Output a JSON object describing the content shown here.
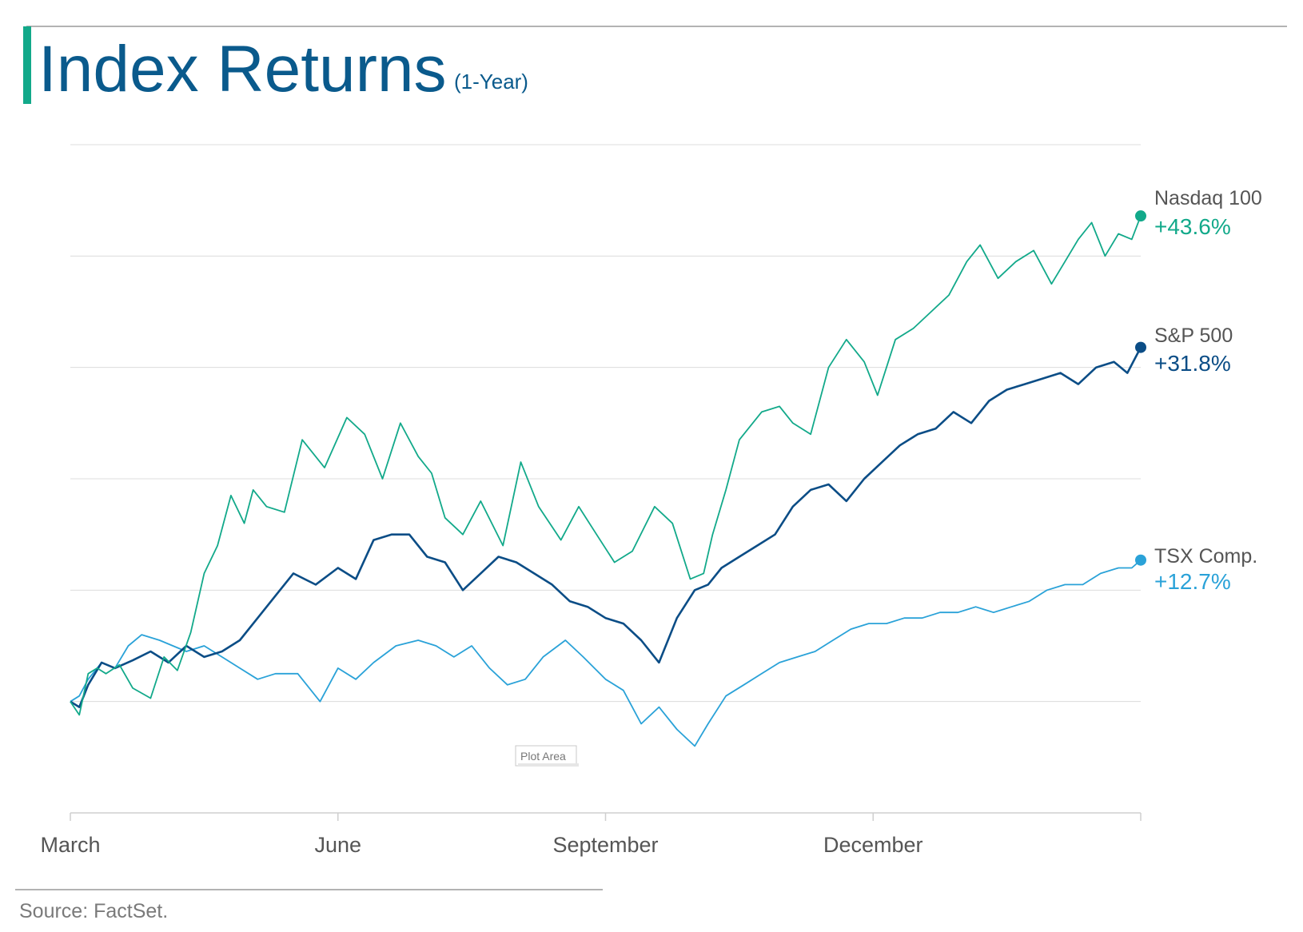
{
  "colors": {
    "accent_bar": "#12a98a",
    "title": "#0a5a8c",
    "gridline": "#dcdcdc",
    "axis": "#cfcfcf",
    "nasdaq": "#12a98a",
    "sp500": "#0b4d86",
    "tsx": "#2aa2d8"
  },
  "title": "Index Returns",
  "subtitle": "(1-Year)",
  "source": "Source: FactSet.",
  "tooltip": "Plot Area",
  "chart_data": {
    "type": "line",
    "title": "Index Returns",
    "subtitle": "(1-Year)",
    "xlabel": "",
    "ylabel": "",
    "x_ticks": [
      "March",
      "June",
      "September",
      "December"
    ],
    "x_tick_positions": [
      0,
      3,
      6,
      9
    ],
    "x_range": [
      0,
      12
    ],
    "ylim": [
      -10,
      50
    ],
    "grid": "horizontal",
    "y_tick_labels_shown": false,
    "legend": "direct labels at line ends (right)",
    "series": [
      {
        "name": "Nasdaq 100",
        "label": "+43.6%",
        "color": "#12a98a",
        "x": [
          0,
          0.1,
          0.2,
          0.3,
          0.4,
          0.55,
          0.7,
          0.9,
          1.05,
          1.2,
          1.35,
          1.5,
          1.65,
          1.8,
          1.95,
          2.05,
          2.2,
          2.4,
          2.6,
          2.85,
          3.1,
          3.3,
          3.5,
          3.7,
          3.9,
          4.05,
          4.2,
          4.4,
          4.6,
          4.85,
          5.05,
          5.25,
          5.5,
          5.7,
          5.9,
          6.1,
          6.3,
          6.55,
          6.75,
          6.95,
          7.1,
          7.2,
          7.35,
          7.5,
          7.75,
          7.95,
          8.1,
          8.3,
          8.5,
          8.7,
          8.9,
          9.05,
          9.25,
          9.45,
          9.65,
          9.85,
          10.05,
          10.2,
          10.4,
          10.6,
          10.8,
          11.0,
          11.15,
          11.3,
          11.45,
          11.6,
          11.75,
          11.9,
          12.0
        ],
        "y": [
          0,
          -1.2,
          2.5,
          3.0,
          2.5,
          3.3,
          1.2,
          0.3,
          4.0,
          2.8,
          6.2,
          11.5,
          14.0,
          18.5,
          16.0,
          19.0,
          17.5,
          17.0,
          23.5,
          21.0,
          25.5,
          24.0,
          20.0,
          25.0,
          22.0,
          20.5,
          16.5,
          15.0,
          18.0,
          14.0,
          21.5,
          17.5,
          14.5,
          17.5,
          15.0,
          12.5,
          13.5,
          17.5,
          16.0,
          11.0,
          11.5,
          15.0,
          19.0,
          23.5,
          26.0,
          26.5,
          25.0,
          24.0,
          30.0,
          32.5,
          30.5,
          27.5,
          32.5,
          33.5,
          35.0,
          36.5,
          39.5,
          41.0,
          38.0,
          39.5,
          40.5,
          37.5,
          39.5,
          41.5,
          43.0,
          40.0,
          42.0,
          41.5,
          43.6
        ]
      },
      {
        "name": "S&P 500",
        "label": "+31.8%",
        "color": "#0b4d86",
        "x": [
          0,
          0.1,
          0.2,
          0.35,
          0.5,
          0.7,
          0.9,
          1.1,
          1.3,
          1.5,
          1.7,
          1.9,
          2.1,
          2.3,
          2.5,
          2.75,
          3.0,
          3.2,
          3.4,
          3.6,
          3.8,
          4.0,
          4.2,
          4.4,
          4.6,
          4.8,
          5.0,
          5.2,
          5.4,
          5.6,
          5.8,
          6.0,
          6.2,
          6.4,
          6.6,
          6.8,
          7.0,
          7.15,
          7.3,
          7.5,
          7.7,
          7.9,
          8.1,
          8.3,
          8.5,
          8.7,
          8.9,
          9.1,
          9.3,
          9.5,
          9.7,
          9.9,
          10.1,
          10.3,
          10.5,
          10.7,
          10.9,
          11.1,
          11.3,
          11.5,
          11.7,
          11.85,
          12.0
        ],
        "y": [
          0,
          -0.5,
          1.5,
          3.5,
          3.0,
          3.7,
          4.5,
          3.5,
          5.0,
          4.0,
          4.5,
          5.5,
          7.5,
          9.5,
          11.5,
          10.5,
          12.0,
          11.0,
          14.5,
          15.0,
          15.0,
          13.0,
          12.5,
          10.0,
          11.5,
          13.0,
          12.5,
          11.5,
          10.5,
          9.0,
          8.5,
          7.5,
          7.0,
          5.5,
          3.5,
          7.5,
          10.0,
          10.5,
          12.0,
          13.0,
          14.0,
          15.0,
          17.5,
          19.0,
          19.5,
          18.0,
          20.0,
          21.5,
          23.0,
          24.0,
          24.5,
          26.0,
          25.0,
          27.0,
          28.0,
          28.5,
          29.0,
          29.5,
          28.5,
          30.0,
          30.5,
          29.5,
          31.8
        ]
      },
      {
        "name": "TSX Comp.",
        "label": "+12.7%",
        "color": "#2aa2d8",
        "x": [
          0,
          0.1,
          0.2,
          0.35,
          0.5,
          0.65,
          0.8,
          1.0,
          1.15,
          1.3,
          1.5,
          1.7,
          1.9,
          2.1,
          2.3,
          2.55,
          2.8,
          3.0,
          3.2,
          3.4,
          3.65,
          3.9,
          4.1,
          4.3,
          4.5,
          4.7,
          4.9,
          5.1,
          5.3,
          5.55,
          5.75,
          6.0,
          6.2,
          6.4,
          6.6,
          6.8,
          7.0,
          7.15,
          7.35,
          7.55,
          7.75,
          7.95,
          8.15,
          8.35,
          8.55,
          8.75,
          8.95,
          9.15,
          9.35,
          9.55,
          9.75,
          9.95,
          10.15,
          10.35,
          10.55,
          10.75,
          10.95,
          11.15,
          11.35,
          11.55,
          11.75,
          11.9,
          12.0
        ],
        "y": [
          0,
          0.5,
          2.0,
          3.5,
          3.0,
          5.0,
          6.0,
          5.5,
          5.0,
          4.5,
          5.0,
          4.0,
          3.0,
          2.0,
          2.5,
          2.5,
          0.0,
          3.0,
          2.0,
          3.5,
          5.0,
          5.5,
          5.0,
          4.0,
          5.0,
          3.0,
          1.5,
          2.0,
          4.0,
          5.5,
          4.0,
          2.0,
          1.0,
          -2.0,
          -0.5,
          -2.5,
          -4.0,
          -2.0,
          0.5,
          1.5,
          2.5,
          3.5,
          4.0,
          4.5,
          5.5,
          6.5,
          7.0,
          7.0,
          7.5,
          7.5,
          8.0,
          8.0,
          8.5,
          8.0,
          8.5,
          9.0,
          10.0,
          10.5,
          10.5,
          11.5,
          12.0,
          12.0,
          12.7
        ]
      }
    ]
  }
}
